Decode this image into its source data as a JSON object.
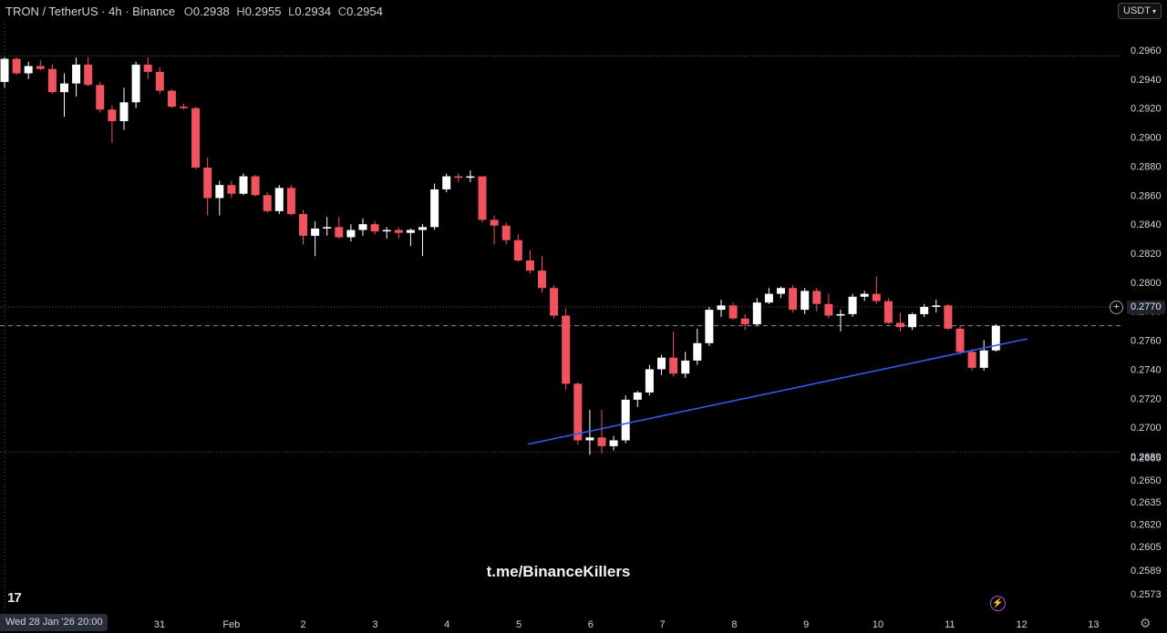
{
  "header": {
    "symbol": "TRON / TetherUS · 4h · Binance",
    "open_label": "O",
    "open": "0.2938",
    "high_label": "H",
    "high": "0.2955",
    "low_label": "L",
    "low": "0.2934",
    "close_label": "C",
    "close": "0.2954"
  },
  "currency_button": "USDT",
  "watermark": "t.me/BinanceKillers",
  "logo": "17",
  "crosshair_time": "Wed 28 Jan '26   20:00",
  "current_price_label": "0.2770",
  "icons": [
    "plus-circle-icon",
    "bolt-icon",
    "gear-icon",
    "tradingview-logo-icon",
    "chevron-down-icon"
  ],
  "colors": {
    "up": "#ffffff",
    "down": "#f0535e",
    "trendline": "#2f5cf0",
    "background": "#000000",
    "axis_text": "#d1d4dc"
  },
  "chart_data": {
    "type": "candlestick",
    "y_ticks": [
      "0.2960",
      "0.2940",
      "0.2920",
      "0.2900",
      "0.2880",
      "0.2860",
      "0.2840",
      "0.2820",
      "0.2800",
      "0.2780",
      "0.2760",
      "0.2740",
      "0.2720",
      "0.2700",
      "0.2680",
      "0.2665",
      "0.2650",
      "0.2635",
      "0.2620",
      "0.2605",
      "0.2589",
      "0.2573"
    ],
    "x_ticks": [
      "31",
      "Feb",
      "2",
      "3",
      "4",
      "5",
      "6",
      "7",
      "8",
      "9",
      "10",
      "11",
      "12",
      "13"
    ],
    "horizontal_levels": [
      0.2956,
      0.2783,
      0.2683
    ],
    "current_price": 0.277,
    "trendline": [
      {
        "day": 5.14,
        "price": 0.2674
      },
      {
        "day": 12.09,
        "price": 0.2761
      }
    ],
    "candles_ohlc": [
      [
        0.2938,
        0.2955,
        0.2934,
        0.2954
      ],
      [
        0.2954,
        0.2955,
        0.2943,
        0.2944
      ],
      [
        0.2944,
        0.2952,
        0.294,
        0.2949
      ],
      [
        0.2949,
        0.2953,
        0.2946,
        0.2947
      ],
      [
        0.2947,
        0.295,
        0.293,
        0.2931
      ],
      [
        0.2931,
        0.2944,
        0.2914,
        0.2937
      ],
      [
        0.2937,
        0.2955,
        0.2928,
        0.295
      ],
      [
        0.295,
        0.2955,
        0.2935,
        0.2936
      ],
      [
        0.2936,
        0.2938,
        0.2917,
        0.2919
      ],
      [
        0.2919,
        0.2922,
        0.2896,
        0.2911
      ],
      [
        0.2911,
        0.2934,
        0.2905,
        0.2924
      ],
      [
        0.2924,
        0.2952,
        0.292,
        0.295
      ],
      [
        0.295,
        0.2955,
        0.294,
        0.2945
      ],
      [
        0.2945,
        0.2948,
        0.293,
        0.2932
      ],
      [
        0.2932,
        0.2933,
        0.292,
        0.2921
      ],
      [
        0.2921,
        0.2923,
        0.2919,
        0.292
      ],
      [
        0.292,
        0.2921,
        0.2878,
        0.2879
      ],
      [
        0.2879,
        0.2886,
        0.2846,
        0.2858
      ],
      [
        0.2858,
        0.287,
        0.2846,
        0.2867
      ],
      [
        0.2867,
        0.287,
        0.2858,
        0.2861
      ],
      [
        0.2861,
        0.2875,
        0.286,
        0.2873
      ],
      [
        0.2873,
        0.2874,
        0.2859,
        0.286
      ],
      [
        0.286,
        0.2862,
        0.2848,
        0.2849
      ],
      [
        0.2849,
        0.2867,
        0.2847,
        0.2865
      ],
      [
        0.2865,
        0.2867,
        0.2846,
        0.2847
      ],
      [
        0.2847,
        0.285,
        0.2826,
        0.2832
      ],
      [
        0.2832,
        0.2842,
        0.2818,
        0.2837
      ],
      [
        0.2837,
        0.2845,
        0.2832,
        0.2838
      ],
      [
        0.2838,
        0.2845,
        0.283,
        0.2831
      ],
      [
        0.2831,
        0.284,
        0.2828,
        0.2836
      ],
      [
        0.2836,
        0.2844,
        0.2832,
        0.284
      ],
      [
        0.284,
        0.2842,
        0.2833,
        0.2835
      ],
      [
        0.2835,
        0.2838,
        0.283,
        0.2836
      ],
      [
        0.2836,
        0.2838,
        0.283,
        0.2834
      ],
      [
        0.2834,
        0.2837,
        0.2825,
        0.2836
      ],
      [
        0.2836,
        0.284,
        0.2818,
        0.2838
      ],
      [
        0.2838,
        0.2868,
        0.2836,
        0.2864
      ],
      [
        0.2864,
        0.2875,
        0.2862,
        0.2873
      ],
      [
        0.2873,
        0.2875,
        0.2869,
        0.2872
      ],
      [
        0.2872,
        0.2877,
        0.2869,
        0.2873
      ],
      [
        0.2873,
        0.2873,
        0.2841,
        0.2843
      ],
      [
        0.2843,
        0.2846,
        0.2826,
        0.2839
      ],
      [
        0.2839,
        0.2841,
        0.2826,
        0.2829
      ],
      [
        0.2829,
        0.2833,
        0.2814,
        0.2815
      ],
      [
        0.2815,
        0.2822,
        0.2806,
        0.2808
      ],
      [
        0.2808,
        0.2818,
        0.2793,
        0.2796
      ],
      [
        0.2796,
        0.2798,
        0.2775,
        0.2777
      ],
      [
        0.2777,
        0.2782,
        0.2726,
        0.273
      ],
      [
        0.273,
        0.2731,
        0.2688,
        0.2691
      ],
      [
        0.2691,
        0.2712,
        0.2681,
        0.2693
      ],
      [
        0.2693,
        0.2712,
        0.2682,
        0.2687
      ],
      [
        0.2687,
        0.2694,
        0.2684,
        0.2691
      ],
      [
        0.2691,
        0.2722,
        0.2689,
        0.2719
      ],
      [
        0.2719,
        0.2725,
        0.2714,
        0.2724
      ],
      [
        0.2724,
        0.2743,
        0.2722,
        0.274
      ],
      [
        0.274,
        0.275,
        0.2736,
        0.2748
      ],
      [
        0.2748,
        0.2766,
        0.2735,
        0.2737
      ],
      [
        0.2737,
        0.2752,
        0.2734,
        0.2746
      ],
      [
        0.2746,
        0.2768,
        0.2743,
        0.2758
      ],
      [
        0.2758,
        0.2783,
        0.2756,
        0.2781
      ],
      [
        0.2781,
        0.2788,
        0.2776,
        0.2784
      ],
      [
        0.2784,
        0.2786,
        0.2774,
        0.2775
      ],
      [
        0.2775,
        0.2778,
        0.2767,
        0.2771
      ],
      [
        0.2771,
        0.2789,
        0.277,
        0.2786
      ],
      [
        0.2786,
        0.2796,
        0.2785,
        0.2792
      ],
      [
        0.2792,
        0.2797,
        0.2789,
        0.2796
      ],
      [
        0.2796,
        0.2798,
        0.2779,
        0.2781
      ],
      [
        0.2781,
        0.2796,
        0.2778,
        0.2794
      ],
      [
        0.2794,
        0.2796,
        0.278,
        0.2785
      ],
      [
        0.2785,
        0.2792,
        0.2775,
        0.2777
      ],
      [
        0.2777,
        0.2781,
        0.2766,
        0.2778
      ],
      [
        0.2778,
        0.2792,
        0.2776,
        0.279
      ],
      [
        0.279,
        0.2794,
        0.2787,
        0.2792
      ],
      [
        0.2792,
        0.2804,
        0.2785,
        0.2787
      ],
      [
        0.2787,
        0.2789,
        0.2771,
        0.2772
      ],
      [
        0.2772,
        0.2779,
        0.2766,
        0.2769
      ],
      [
        0.2769,
        0.2779,
        0.2767,
        0.2778
      ],
      [
        0.2778,
        0.2785,
        0.2776,
        0.2783
      ],
      [
        0.2783,
        0.2788,
        0.2779,
        0.2784
      ],
      [
        0.2784,
        0.2785,
        0.2767,
        0.2768
      ],
      [
        0.2768,
        0.277,
        0.275,
        0.2752
      ],
      [
        0.2752,
        0.2754,
        0.2739,
        0.2741
      ],
      [
        0.2741,
        0.276,
        0.2739,
        0.2753
      ],
      [
        0.2753,
        0.2771,
        0.2752,
        0.277
      ]
    ]
  }
}
